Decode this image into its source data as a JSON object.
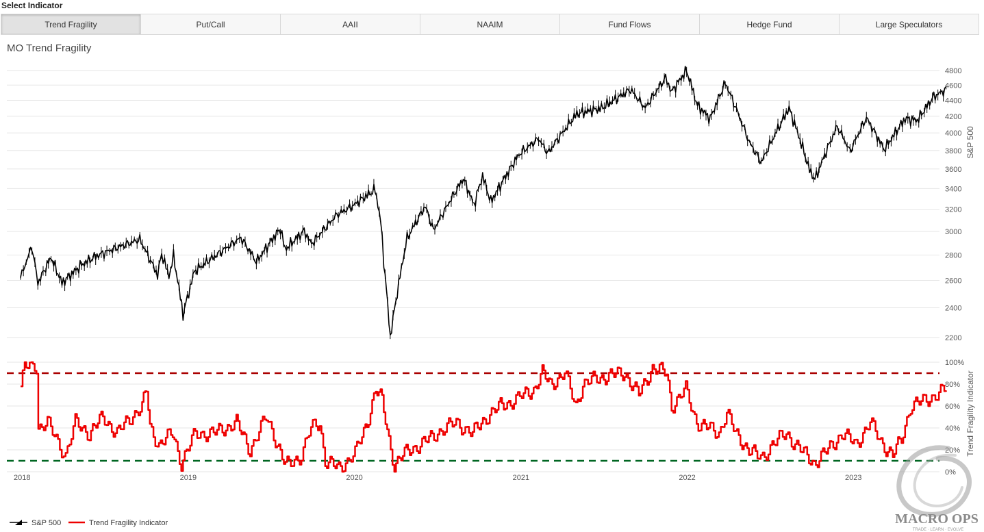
{
  "header": {
    "label": "Select Indicator"
  },
  "tabs": [
    {
      "label": "Trend Fragility",
      "active": true
    },
    {
      "label": "Put/Call",
      "active": false
    },
    {
      "label": "AAII",
      "active": false
    },
    {
      "label": "NAAIM",
      "active": false
    },
    {
      "label": "Fund Flows",
      "active": false
    },
    {
      "label": "Hedge Fund",
      "active": false
    },
    {
      "label": "Large Speculators",
      "active": false
    }
  ],
  "chart_title": "MO Trend Fragility",
  "logo": {
    "text": "MACRO OPS",
    "tagline": "TRADE · LEARN · EVOLVE"
  },
  "chart_data": {
    "type": "line",
    "title": "MO Trend Fragility",
    "x_ticks": [
      "2018",
      "2019",
      "2020",
      "2021",
      "2022",
      "2023"
    ],
    "x_range": [
      "2018-01-01",
      "2023-05-01"
    ],
    "panels": [
      {
        "name": "S&P 500",
        "ylabel": "S&P 500",
        "y_scale": "log",
        "ylim": [
          2200,
          4800
        ],
        "y_ticks": [
          2200,
          2400,
          2600,
          2800,
          3000,
          3200,
          3400,
          3600,
          3800,
          4000,
          4200,
          4400,
          4600,
          4800
        ],
        "color": "#000000",
        "style": "ohlc",
        "points": [
          [
            "2018-01-01",
            2620
          ],
          [
            "2018-01-26",
            2870
          ],
          [
            "2018-02-08",
            2580
          ],
          [
            "2018-03-09",
            2780
          ],
          [
            "2018-04-02",
            2580
          ],
          [
            "2018-05-15",
            2720
          ],
          [
            "2018-06-15",
            2790
          ],
          [
            "2018-07-25",
            2850
          ],
          [
            "2018-09-20",
            2930
          ],
          [
            "2018-10-10",
            2780
          ],
          [
            "2018-10-29",
            2640
          ],
          [
            "2018-11-07",
            2810
          ],
          [
            "2018-11-23",
            2630
          ],
          [
            "2018-12-03",
            2790
          ],
          [
            "2018-12-24",
            2350
          ],
          [
            "2019-01-18",
            2670
          ],
          [
            "2019-02-28",
            2780
          ],
          [
            "2019-04-30",
            2945
          ],
          [
            "2019-06-03",
            2745
          ],
          [
            "2019-07-26",
            3025
          ],
          [
            "2019-08-05",
            2845
          ],
          [
            "2019-09-16",
            3005
          ],
          [
            "2019-10-02",
            2890
          ],
          [
            "2019-11-27",
            3150
          ],
          [
            "2019-12-31",
            3230
          ],
          [
            "2020-02-19",
            3390
          ],
          [
            "2020-03-02",
            3090
          ],
          [
            "2020-03-09",
            2750
          ],
          [
            "2020-03-23",
            2200
          ],
          [
            "2020-04-29",
            2940
          ],
          [
            "2020-06-08",
            3230
          ],
          [
            "2020-06-26",
            3010
          ],
          [
            "2020-08-31",
            3500
          ],
          [
            "2020-09-23",
            3240
          ],
          [
            "2020-10-12",
            3530
          ],
          [
            "2020-10-30",
            3270
          ],
          [
            "2020-12-31",
            3756
          ],
          [
            "2021-02-12",
            3935
          ],
          [
            "2021-03-04",
            3770
          ],
          [
            "2021-05-07",
            4230
          ],
          [
            "2021-06-30",
            4300
          ],
          [
            "2021-09-02",
            4540
          ],
          [
            "2021-10-04",
            4300
          ],
          [
            "2021-11-18",
            4700
          ],
          [
            "2021-12-01",
            4510
          ],
          [
            "2022-01-03",
            4800
          ],
          [
            "2022-01-27",
            4330
          ],
          [
            "2022-02-24",
            4170
          ],
          [
            "2022-03-29",
            4630
          ],
          [
            "2022-05-20",
            3900
          ],
          [
            "2022-06-16",
            3670
          ],
          [
            "2022-08-16",
            4300
          ],
          [
            "2022-09-30",
            3590
          ],
          [
            "2022-10-12",
            3490
          ],
          [
            "2022-11-30",
            4080
          ],
          [
            "2022-12-28",
            3790
          ],
          [
            "2023-02-02",
            4180
          ],
          [
            "2023-03-13",
            3810
          ],
          [
            "2023-04-28",
            4170
          ],
          [
            "2023-05-25",
            4150
          ],
          [
            "2023-06-30",
            4450
          ],
          [
            "2023-07-27",
            4540
          ]
        ]
      },
      {
        "name": "Trend Fragility Indicator",
        "ylabel": "Trend Fragility Indicator",
        "ylim": [
          0,
          100
        ],
        "y_ticks": [
          "0%",
          "20%",
          "40%",
          "60%",
          "80%",
          "100%"
        ],
        "color": "#ee0000",
        "thresholds": [
          {
            "value": 90,
            "color": "#aa0000"
          },
          {
            "value": 10,
            "color": "#006622"
          }
        ],
        "points": [
          [
            "2018-01-01",
            78
          ],
          [
            "2018-01-10",
            95
          ],
          [
            "2018-02-01",
            98
          ],
          [
            "2018-02-05",
            96
          ],
          [
            "2018-02-09",
            40
          ],
          [
            "2018-03-01",
            45
          ],
          [
            "2018-03-20",
            30
          ],
          [
            "2018-04-10",
            15
          ],
          [
            "2018-05-01",
            45
          ],
          [
            "2018-06-01",
            35
          ],
          [
            "2018-07-01",
            50
          ],
          [
            "2018-08-01",
            35
          ],
          [
            "2018-09-01",
            50
          ],
          [
            "2018-09-25",
            60
          ],
          [
            "2018-10-05",
            75
          ],
          [
            "2018-10-12",
            40
          ],
          [
            "2018-11-01",
            25
          ],
          [
            "2018-12-01",
            35
          ],
          [
            "2018-12-20",
            8
          ],
          [
            "2019-01-20",
            35
          ],
          [
            "2019-03-01",
            35
          ],
          [
            "2019-04-20",
            45
          ],
          [
            "2019-05-20",
            20
          ],
          [
            "2019-06-25",
            50
          ],
          [
            "2019-07-15",
            30
          ],
          [
            "2019-08-06",
            5
          ],
          [
            "2019-09-10",
            15
          ],
          [
            "2019-10-01",
            40
          ],
          [
            "2019-10-20",
            45
          ],
          [
            "2019-11-01",
            10
          ],
          [
            "2019-12-01",
            3
          ],
          [
            "2019-12-20",
            10
          ],
          [
            "2020-01-10",
            20
          ],
          [
            "2020-02-01",
            45
          ],
          [
            "2020-02-20",
            75
          ],
          [
            "2020-03-05",
            65
          ],
          [
            "2020-03-20",
            30
          ],
          [
            "2020-04-01",
            5
          ],
          [
            "2020-05-01",
            20
          ],
          [
            "2020-06-01",
            25
          ],
          [
            "2020-07-01",
            35
          ],
          [
            "2020-08-15",
            45
          ],
          [
            "2020-09-20",
            35
          ],
          [
            "2020-10-20",
            50
          ],
          [
            "2020-11-20",
            60
          ],
          [
            "2020-12-20",
            65
          ],
          [
            "2021-01-10",
            70
          ],
          [
            "2021-02-01",
            75
          ],
          [
            "2021-02-20",
            90
          ],
          [
            "2021-03-10",
            80
          ],
          [
            "2021-04-10",
            90
          ],
          [
            "2021-05-05",
            60
          ],
          [
            "2021-05-20",
            80
          ],
          [
            "2021-06-20",
            85
          ],
          [
            "2021-07-20",
            88
          ],
          [
            "2021-08-20",
            90
          ],
          [
            "2021-09-20",
            70
          ],
          [
            "2021-10-20",
            95
          ],
          [
            "2021-11-20",
            90
          ],
          [
            "2021-12-01",
            60
          ],
          [
            "2022-01-01",
            75
          ],
          [
            "2022-01-25",
            45
          ],
          [
            "2022-02-20",
            40
          ],
          [
            "2022-03-15",
            35
          ],
          [
            "2022-04-01",
            55
          ],
          [
            "2022-04-20",
            35
          ],
          [
            "2022-05-20",
            20
          ],
          [
            "2022-06-15",
            12
          ],
          [
            "2022-07-10",
            25
          ],
          [
            "2022-08-10",
            35
          ],
          [
            "2022-09-10",
            20
          ],
          [
            "2022-10-10",
            8
          ],
          [
            "2022-11-10",
            20
          ],
          [
            "2022-12-10",
            35
          ],
          [
            "2023-01-10",
            25
          ],
          [
            "2023-02-10",
            45
          ],
          [
            "2023-03-10",
            25
          ],
          [
            "2023-04-01",
            15
          ],
          [
            "2023-04-20",
            30
          ],
          [
            "2023-05-10",
            60
          ],
          [
            "2023-06-10",
            65
          ],
          [
            "2023-07-27",
            75
          ]
        ]
      }
    ],
    "legend": {
      "position": "bottom-left",
      "entries": [
        "S&P 500",
        "Trend Fragility Indicator"
      ]
    },
    "grid": true
  }
}
